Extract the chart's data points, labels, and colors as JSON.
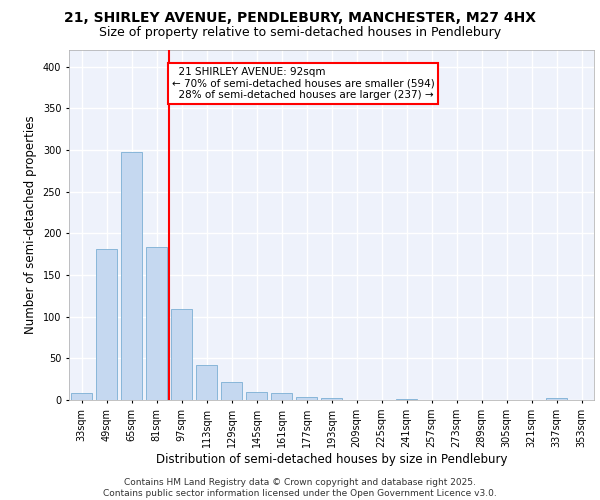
{
  "title_line1": "21, SHIRLEY AVENUE, PENDLEBURY, MANCHESTER, M27 4HX",
  "title_line2": "Size of property relative to semi-detached houses in Pendlebury",
  "xlabel": "Distribution of semi-detached houses by size in Pendlebury",
  "ylabel": "Number of semi-detached properties",
  "categories": [
    "33sqm",
    "49sqm",
    "65sqm",
    "81sqm",
    "97sqm",
    "113sqm",
    "129sqm",
    "145sqm",
    "161sqm",
    "177sqm",
    "193sqm",
    "209sqm",
    "225sqm",
    "241sqm",
    "257sqm",
    "273sqm",
    "289sqm",
    "305sqm",
    "321sqm",
    "337sqm",
    "353sqm"
  ],
  "values": [
    8,
    181,
    298,
    184,
    109,
    42,
    22,
    10,
    8,
    4,
    3,
    0,
    0,
    1,
    0,
    0,
    0,
    0,
    0,
    3,
    0
  ],
  "bar_color": "#c5d8f0",
  "bar_edgecolor": "#7bafd4",
  "marker_color": "red",
  "ylim": [
    0,
    420
  ],
  "yticks": [
    0,
    50,
    100,
    150,
    200,
    250,
    300,
    350,
    400
  ],
  "axes_facecolor": "#eef2fb",
  "grid_color": "#ffffff",
  "marker_label": "21 SHIRLEY AVENUE: 92sqm",
  "marker_pct_smaller": "70% of semi-detached houses are smaller (594)",
  "marker_pct_larger": "28% of semi-detached houses are larger (237)",
  "footnote": "Contains HM Land Registry data © Crown copyright and database right 2025.\nContains public sector information licensed under the Open Government Licence v3.0.",
  "title_fontsize": 10,
  "subtitle_fontsize": 9,
  "axis_label_fontsize": 8.5,
  "tick_fontsize": 7,
  "annot_fontsize": 7.5,
  "footnote_fontsize": 6.5
}
